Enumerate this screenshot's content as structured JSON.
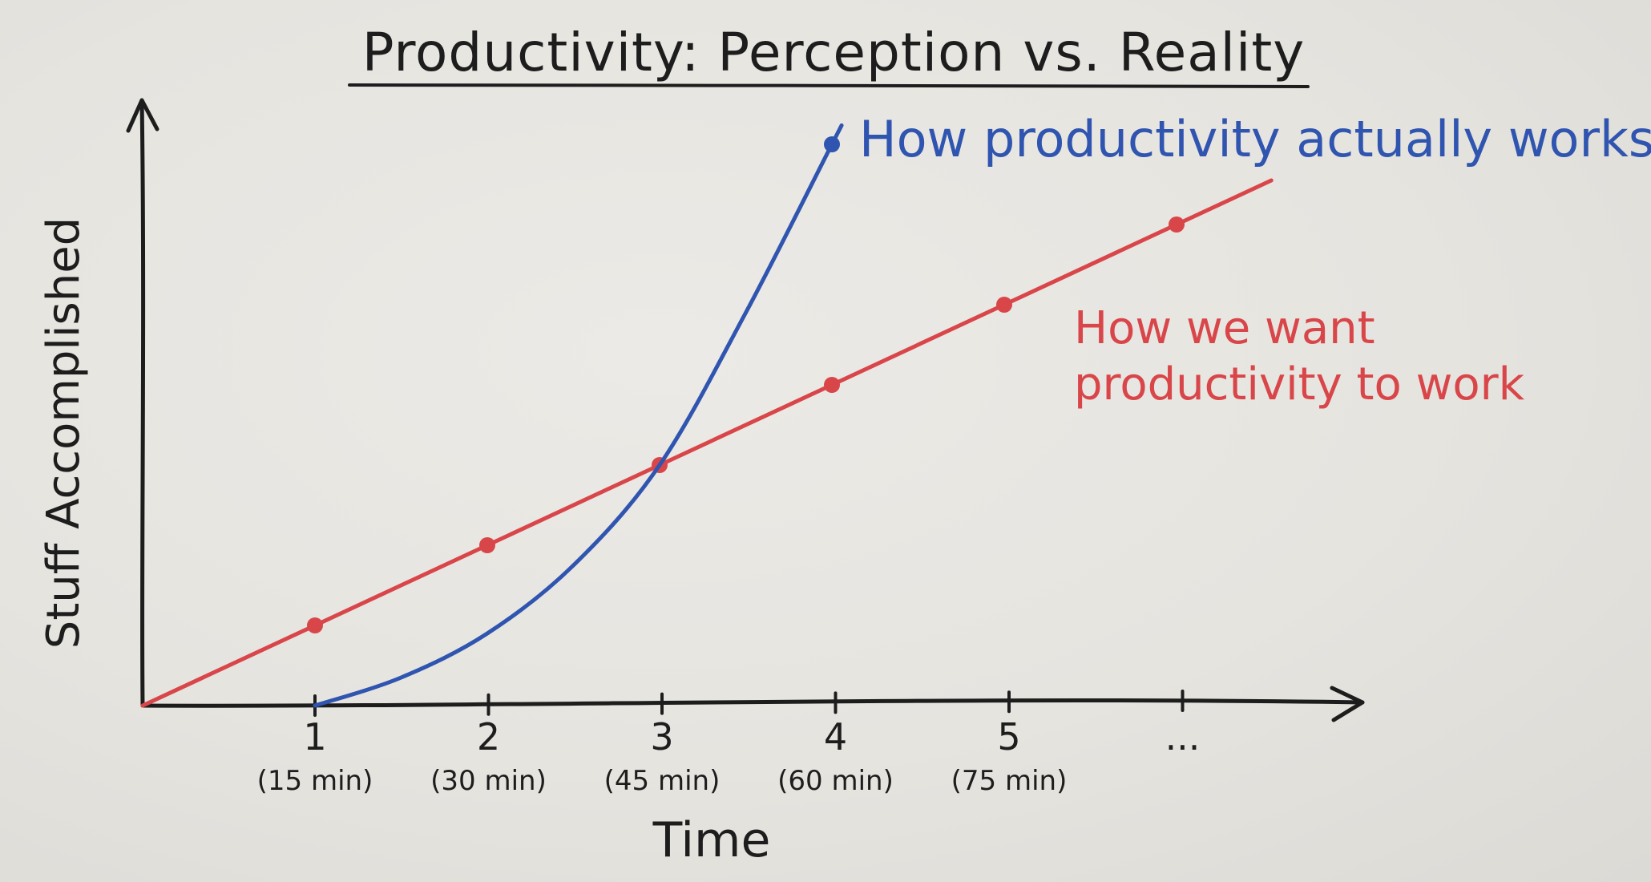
{
  "chart_data": {
    "type": "line",
    "title": "Productivity: Perception vs. Reality",
    "xlabel": "Time",
    "ylabel": "Stuff Accomplished",
    "x": [
      0,
      1,
      2,
      3,
      4,
      5,
      6
    ],
    "x_tick_labels": [
      {
        "num": "1",
        "sub": "(15 min)"
      },
      {
        "num": "2",
        "sub": "(30 min)"
      },
      {
        "num": "3",
        "sub": "(45 min)"
      },
      {
        "num": "4",
        "sub": "(60 min)"
      },
      {
        "num": "5",
        "sub": "(75 min)"
      },
      {
        "num": "...",
        "sub": ""
      }
    ],
    "xlim": [
      0,
      7.2
    ],
    "ylim": [
      0,
      7.5
    ],
    "grid": false,
    "series": [
      {
        "name": "How we want productivity to work",
        "label_lines": [
          "How we want",
          "productivity to work"
        ],
        "color": "#d9464a",
        "x": [
          0,
          1,
          2,
          3,
          4,
          5,
          6
        ],
        "values": [
          0,
          1,
          2,
          3,
          4,
          5,
          6
        ],
        "markers": [
          1,
          2,
          3,
          4,
          5,
          6
        ],
        "extend_to_x": 6.55
      },
      {
        "name": "How productivity actually works",
        "label_lines": [
          "How productivity actually works"
        ],
        "color": "#2f55b0",
        "x": [
          1,
          1.5,
          2,
          2.5,
          3,
          3.5,
          4
        ],
        "values": [
          0,
          0.35,
          0.9,
          1.75,
          3.0,
          4.9,
          7.0
        ],
        "markers": [
          4
        ],
        "extend_to_x": 4.05
      }
    ]
  }
}
